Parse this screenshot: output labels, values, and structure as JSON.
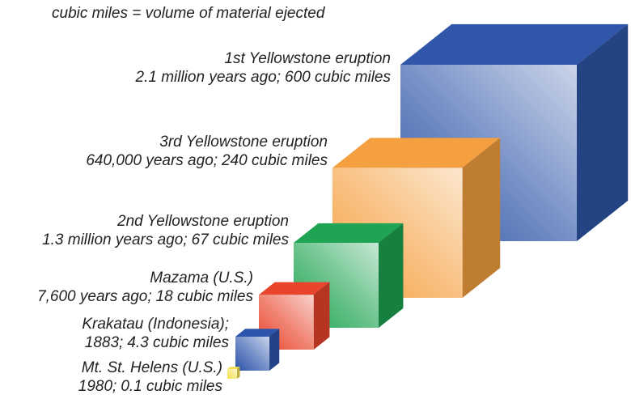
{
  "chart_data": {
    "type": "cube",
    "note": "cubic miles = volume of material ejected",
    "categories": [
      "1st Yellowstone eruption",
      "3rd Yellowstone eruption",
      "2nd Yellowstone eruption",
      "Mazama (U.S.)",
      "Krakatau (Indonesia);",
      "Mt. St. Helens (U.S.)"
    ],
    "dates": [
      "2.1 million years ago;",
      "640,000 years ago;",
      "1.3 million years ago;",
      "7,600 years ago;",
      "1883;",
      "1980;"
    ],
    "values": [
      600,
      240,
      67,
      18,
      4.3,
      0.1
    ],
    "value_labels": [
      "600 cubic miles",
      "240 cubic miles",
      "67 cubic miles",
      "18 cubic miles",
      "4.3 cubic miles",
      "0.1 cubic miles"
    ],
    "colors": [
      "#2f56a8",
      "#f5a040",
      "#1ea452",
      "#e8452c",
      "#2c54ac",
      "#f2e04c"
    ]
  }
}
